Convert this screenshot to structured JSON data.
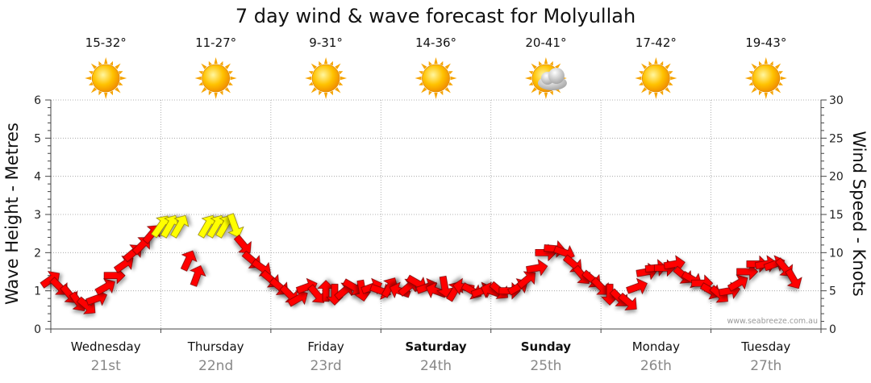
{
  "chart_data": {
    "type": "line",
    "title": "7 day wind & wave forecast for Molyullah",
    "ylabel_left": "Wave Height - Metres",
    "ylabel_right": "Wind Speed - Knots",
    "ylim_left": [
      0,
      6
    ],
    "ylim_right": [
      0,
      30
    ],
    "yticks_left": [
      "0",
      "1",
      "2",
      "3",
      "4",
      "5",
      "6"
    ],
    "yticks_right": [
      "0",
      "5",
      "10",
      "15",
      "20",
      "25",
      "30"
    ],
    "days": [
      {
        "name": "Wednesday",
        "date": "21st",
        "bold": false,
        "temp": "15-32°",
        "icon": "sun-icon"
      },
      {
        "name": "Thursday",
        "date": "22nd",
        "bold": false,
        "temp": "11-27°",
        "icon": "sun-icon"
      },
      {
        "name": "Friday",
        "date": "23rd",
        "bold": false,
        "temp": "9-31°",
        "icon": "sun-icon"
      },
      {
        "name": "Saturday",
        "date": "24th",
        "bold": true,
        "temp": "14-36°",
        "icon": "sun-icon"
      },
      {
        "name": "Sunday",
        "date": "25th",
        "bold": true,
        "temp": "20-41°",
        "icon": "sun-cloud-icon"
      },
      {
        "name": "Monday",
        "date": "26th",
        "bold": false,
        "temp": "17-42°",
        "icon": "sun-icon"
      },
      {
        "name": "Tuesday",
        "date": "27th",
        "bold": false,
        "temp": "19-43°",
        "icon": "sun-icon"
      }
    ],
    "series": [
      {
        "name": "Wind Speed (knots)",
        "axis": "right",
        "x_unit": "days from Wednesday 00:00",
        "points": [
          {
            "x": 0.0,
            "y": 6.5,
            "dir": -35
          },
          {
            "x": 0.08,
            "y": 5.5,
            "dir": 45
          },
          {
            "x": 0.17,
            "y": 4.5,
            "dir": 50
          },
          {
            "x": 0.25,
            "y": 3.5,
            "dir": 55
          },
          {
            "x": 0.33,
            "y": 3.0,
            "dir": 40
          },
          {
            "x": 0.42,
            "y": 4.0,
            "dir": -20
          },
          {
            "x": 0.5,
            "y": 5.5,
            "dir": -30
          },
          {
            "x": 0.58,
            "y": 7.0,
            "dir": 0
          },
          {
            "x": 0.67,
            "y": 8.5,
            "dir": -35
          },
          {
            "x": 0.75,
            "y": 10.0,
            "dir": -40
          },
          {
            "x": 0.83,
            "y": 11.0,
            "dir": -45
          },
          {
            "x": 0.92,
            "y": 12.5,
            "dir": -50
          },
          {
            "x": 1.0,
            "y": 13.5,
            "dir": -55
          },
          {
            "x": 1.08,
            "y": 13.5,
            "dir": -60
          },
          {
            "x": 1.17,
            "y": 13.5,
            "dir": -60
          },
          {
            "x": 1.25,
            "y": 9.0,
            "dir": -65
          },
          {
            "x": 1.33,
            "y": 7.0,
            "dir": -70
          },
          {
            "x": 1.42,
            "y": 13.5,
            "dir": -60
          },
          {
            "x": 1.5,
            "y": 13.5,
            "dir": -60
          },
          {
            "x": 1.58,
            "y": 13.5,
            "dir": -60
          },
          {
            "x": 1.67,
            "y": 13.5,
            "dir": 70
          },
          {
            "x": 1.75,
            "y": 11.0,
            "dir": 50
          },
          {
            "x": 1.83,
            "y": 9.0,
            "dir": 40
          },
          {
            "x": 1.92,
            "y": 8.0,
            "dir": 35
          },
          {
            "x": 2.0,
            "y": 6.5,
            "dir": 40
          },
          {
            "x": 2.08,
            "y": 5.5,
            "dir": 40
          },
          {
            "x": 2.17,
            "y": 4.5,
            "dir": 45
          },
          {
            "x": 2.25,
            "y": 4.0,
            "dir": -30
          },
          {
            "x": 2.33,
            "y": 5.5,
            "dir": -20
          },
          {
            "x": 2.42,
            "y": 4.5,
            "dir": 50
          },
          {
            "x": 2.5,
            "y": 5.0,
            "dir": -90
          },
          {
            "x": 2.58,
            "y": 4.5,
            "dir": 90
          },
          {
            "x": 2.67,
            "y": 5.0,
            "dir": -40
          },
          {
            "x": 2.75,
            "y": 5.5,
            "dir": 30
          },
          {
            "x": 2.83,
            "y": 5.0,
            "dir": 80
          },
          {
            "x": 2.92,
            "y": 5.5,
            "dir": -20
          },
          {
            "x": 3.0,
            "y": 5.0,
            "dir": 20
          },
          {
            "x": 3.08,
            "y": 5.5,
            "dir": -60
          },
          {
            "x": 3.17,
            "y": 5.0,
            "dir": 200
          },
          {
            "x": 3.25,
            "y": 5.5,
            "dir": -40
          },
          {
            "x": 3.33,
            "y": 6.0,
            "dir": 30
          },
          {
            "x": 3.42,
            "y": 5.5,
            "dir": -20
          },
          {
            "x": 3.5,
            "y": 5.0,
            "dir": 200
          },
          {
            "x": 3.58,
            "y": 5.5,
            "dir": 80
          },
          {
            "x": 3.67,
            "y": 5.0,
            "dir": -60
          },
          {
            "x": 3.75,
            "y": 5.5,
            "dir": 190
          },
          {
            "x": 3.83,
            "y": 5.0,
            "dir": 30
          },
          {
            "x": 3.92,
            "y": 5.0,
            "dir": -20
          },
          {
            "x": 4.0,
            "y": 5.0,
            "dir": 200
          },
          {
            "x": 4.08,
            "y": 5.0,
            "dir": 40
          },
          {
            "x": 4.17,
            "y": 5.0,
            "dir": 0
          },
          {
            "x": 4.25,
            "y": 5.5,
            "dir": -30
          },
          {
            "x": 4.33,
            "y": 6.5,
            "dir": -40
          },
          {
            "x": 4.42,
            "y": 8.0,
            "dir": -10
          },
          {
            "x": 4.5,
            "y": 10.0,
            "dir": 0
          },
          {
            "x": 4.58,
            "y": 10.5,
            "dir": 5
          },
          {
            "x": 4.67,
            "y": 10.0,
            "dir": 20
          },
          {
            "x": 4.75,
            "y": 8.5,
            "dir": 40
          },
          {
            "x": 4.83,
            "y": 7.0,
            "dir": 50
          },
          {
            "x": 4.92,
            "y": 6.5,
            "dir": 40
          },
          {
            "x": 5.0,
            "y": 5.5,
            "dir": 45
          },
          {
            "x": 5.08,
            "y": 4.5,
            "dir": 90
          },
          {
            "x": 5.17,
            "y": 4.0,
            "dir": 45
          },
          {
            "x": 5.25,
            "y": 3.5,
            "dir": 40
          },
          {
            "x": 5.33,
            "y": 5.5,
            "dir": -20
          },
          {
            "x": 5.42,
            "y": 7.5,
            "dir": -10
          },
          {
            "x": 5.5,
            "y": 8.0,
            "dir": -5
          },
          {
            "x": 5.58,
            "y": 8.0,
            "dir": 0
          },
          {
            "x": 5.67,
            "y": 8.5,
            "dir": -10
          },
          {
            "x": 5.75,
            "y": 7.0,
            "dir": 40
          },
          {
            "x": 5.83,
            "y": 6.5,
            "dir": 30
          },
          {
            "x": 5.92,
            "y": 6.0,
            "dir": 0
          },
          {
            "x": 6.0,
            "y": 5.0,
            "dir": 30
          },
          {
            "x": 6.08,
            "y": 4.5,
            "dir": 40
          },
          {
            "x": 6.17,
            "y": 5.0,
            "dir": -10
          },
          {
            "x": 6.25,
            "y": 6.0,
            "dir": -30
          },
          {
            "x": 6.33,
            "y": 7.5,
            "dir": 0
          },
          {
            "x": 6.42,
            "y": 8.5,
            "dir": 0
          },
          {
            "x": 6.5,
            "y": 8.5,
            "dir": -10
          },
          {
            "x": 6.58,
            "y": 8.5,
            "dir": -20
          },
          {
            "x": 6.67,
            "y": 8.0,
            "dir": 50
          },
          {
            "x": 6.75,
            "y": 6.5,
            "dir": 60
          }
        ]
      }
    ],
    "wind_colors": {
      "light": "#ff0000",
      "strong": "#ffff00",
      "threshold_knots": 13
    }
  },
  "credit": "www.seabreeze.com.au"
}
